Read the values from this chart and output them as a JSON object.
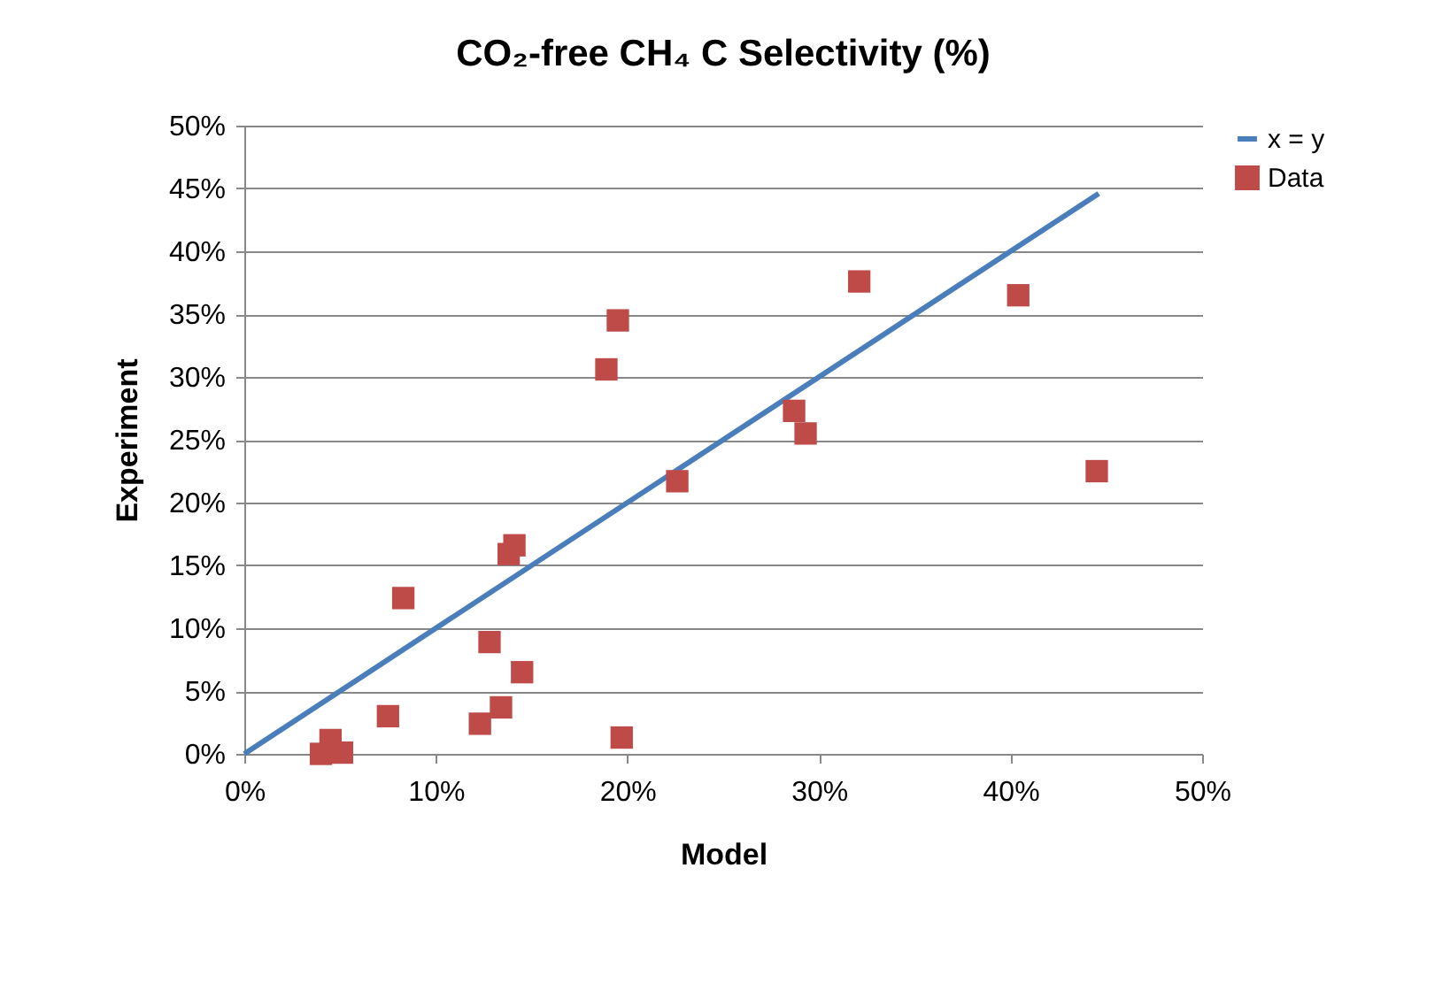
{
  "chart_data": {
    "type": "scatter",
    "title": "CO₂-free CH₄ C Selectivity (%)",
    "xlabel": "Model",
    "ylabel": "Experiment",
    "xlim": [
      0,
      50
    ],
    "ylim": [
      0,
      50
    ],
    "xticks": [
      {
        "value": 0,
        "label": "0%"
      },
      {
        "value": 10,
        "label": "10%"
      },
      {
        "value": 20,
        "label": "20%"
      },
      {
        "value": 30,
        "label": "30%"
      },
      {
        "value": 40,
        "label": "40%"
      },
      {
        "value": 50,
        "label": "50%"
      }
    ],
    "yticks": [
      {
        "value": 0,
        "label": "0%"
      },
      {
        "value": 5,
        "label": "5%"
      },
      {
        "value": 10,
        "label": "10%"
      },
      {
        "value": 15,
        "label": "15%"
      },
      {
        "value": 20,
        "label": "20%"
      },
      {
        "value": 25,
        "label": "25%"
      },
      {
        "value": 30,
        "label": "30%"
      },
      {
        "value": 35,
        "label": "35%"
      },
      {
        "value": 40,
        "label": "40%"
      },
      {
        "value": 45,
        "label": "45%"
      },
      {
        "value": 50,
        "label": "50%"
      }
    ],
    "grid": "y",
    "legend": "right",
    "series": [
      {
        "name": "x = y",
        "type": "line",
        "color": "#4a7ebb",
        "line_style": "solid",
        "x": [
          0,
          44.6
        ],
        "values": [
          0,
          44.6
        ]
      },
      {
        "name": "Data",
        "type": "scatter",
        "color": "#be4b48",
        "marker": "square",
        "x": [
          4.0,
          4.5,
          5.1,
          7.5,
          8.3,
          12.3,
          12.8,
          13.4,
          13.8,
          14.1,
          14.5,
          18.9,
          19.5,
          19.7,
          22.6,
          28.7,
          29.3,
          32.1,
          40.4,
          44.5
        ],
        "values": [
          0.0,
          1.1,
          0.1,
          3.0,
          12.4,
          2.4,
          8.9,
          3.7,
          15.9,
          16.6,
          6.5,
          30.6,
          34.5,
          1.3,
          21.7,
          27.3,
          25.5,
          37.6,
          36.5,
          22.5
        ]
      }
    ]
  }
}
